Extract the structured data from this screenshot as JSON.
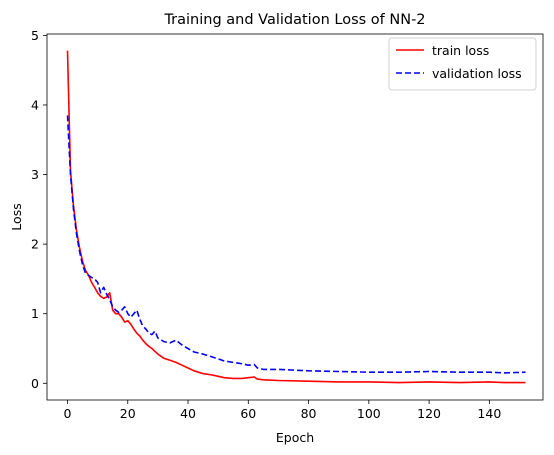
{
  "chart_data": {
    "type": "line",
    "title": "Training and Validation Loss of NN-2",
    "xlabel": "Epoch",
    "ylabel": "Loss",
    "xlim": [
      -6.8,
      157.8
    ],
    "ylim": [
      -0.24,
      5.02
    ],
    "xticks": [
      0,
      20,
      40,
      60,
      80,
      100,
      120,
      140
    ],
    "yticks": [
      0,
      1,
      2,
      3,
      4,
      5
    ],
    "grid": false,
    "legend_position": "upper-right",
    "series": [
      {
        "name": "train loss",
        "color": "#ff0000",
        "linestyle": "solid",
        "x": [
          0,
          1,
          2,
          3,
          4,
          5,
          6,
          7,
          8,
          9,
          10,
          11,
          12,
          13,
          14,
          15,
          16,
          17,
          18,
          19,
          20,
          21,
          22,
          23,
          24,
          25,
          26,
          27,
          28,
          29,
          30,
          32,
          34,
          36,
          38,
          40,
          42,
          45,
          48,
          50,
          52,
          55,
          58,
          60,
          62,
          63,
          65,
          70,
          80,
          90,
          100,
          110,
          120,
          130,
          140,
          145,
          152
        ],
        "y": [
          4.78,
          3.05,
          2.55,
          2.2,
          1.95,
          1.75,
          1.62,
          1.55,
          1.45,
          1.38,
          1.3,
          1.25,
          1.22,
          1.24,
          1.3,
          1.05,
          1.0,
          1.0,
          0.95,
          0.88,
          0.9,
          0.85,
          0.78,
          0.72,
          0.68,
          0.62,
          0.57,
          0.53,
          0.5,
          0.46,
          0.42,
          0.36,
          0.33,
          0.3,
          0.26,
          0.22,
          0.18,
          0.14,
          0.12,
          0.1,
          0.08,
          0.07,
          0.07,
          0.08,
          0.09,
          0.06,
          0.05,
          0.04,
          0.03,
          0.02,
          0.02,
          0.01,
          0.02,
          0.01,
          0.02,
          0.01,
          0.01
        ]
      },
      {
        "name": "validation loss",
        "color": "#0000ff",
        "linestyle": "dashed",
        "x": [
          0,
          1,
          2,
          3,
          4,
          5,
          6,
          7,
          8,
          9,
          10,
          11,
          12,
          13,
          14,
          15,
          16,
          17,
          18,
          19,
          20,
          21,
          22,
          23,
          24,
          25,
          26,
          27,
          28,
          29,
          30,
          32,
          34,
          36,
          38,
          40,
          42,
          45,
          48,
          50,
          52,
          55,
          58,
          60,
          62,
          63,
          65,
          70,
          80,
          90,
          100,
          110,
          120,
          130,
          140,
          145,
          152
        ],
        "y": [
          3.85,
          3.0,
          2.5,
          2.15,
          1.9,
          1.7,
          1.58,
          1.55,
          1.52,
          1.5,
          1.45,
          1.3,
          1.38,
          1.28,
          1.2,
          1.1,
          1.05,
          1.02,
          1.05,
          1.1,
          1.0,
          0.95,
          1.0,
          1.05,
          0.92,
          0.82,
          0.78,
          0.72,
          0.7,
          0.75,
          0.65,
          0.6,
          0.58,
          0.62,
          0.55,
          0.5,
          0.45,
          0.42,
          0.38,
          0.35,
          0.32,
          0.3,
          0.28,
          0.26,
          0.27,
          0.22,
          0.2,
          0.2,
          0.18,
          0.17,
          0.16,
          0.16,
          0.17,
          0.16,
          0.16,
          0.15,
          0.16
        ]
      }
    ]
  }
}
